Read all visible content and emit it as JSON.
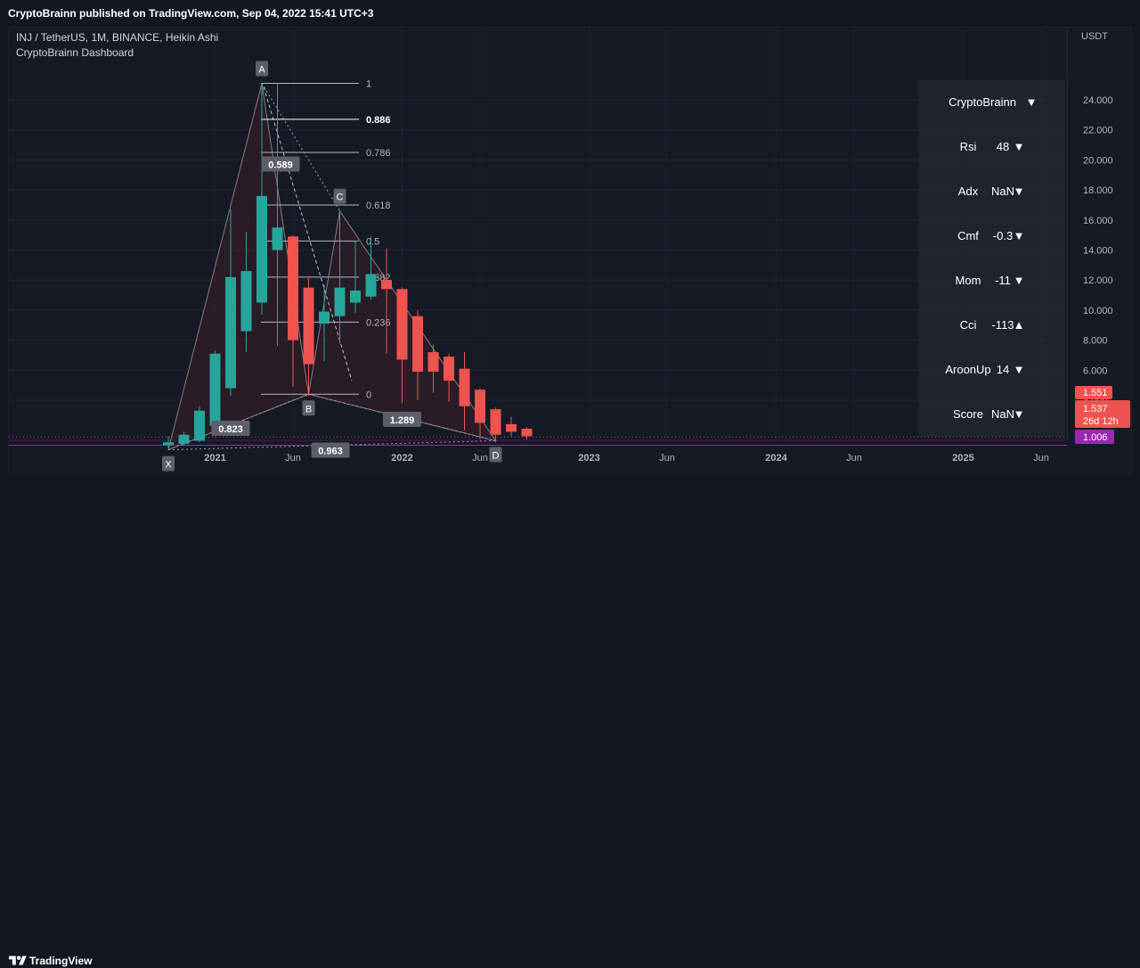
{
  "header": {
    "publisher": "CryptoBrainn published on TradingView.com, Sep 04, 2022 15:41 UTC+3"
  },
  "legend": {
    "symbol_line": "INJ / TetherUS, 1M, BINANCE, Heikin Ashi",
    "indicator_line": "CryptoBrainn Dashboard"
  },
  "currency": "USDT",
  "footer": {
    "brand": "TradingView"
  },
  "dashboard": {
    "title": "CryptoBrainn",
    "title_arrow": "▼",
    "rows": [
      {
        "label": "Rsi",
        "value": "48",
        "arrow": "▼"
      },
      {
        "label": "Adx",
        "value": "NaN",
        "arrow": "▼"
      },
      {
        "label": "Cmf",
        "value": "-0.3",
        "arrow": "▼"
      },
      {
        "label": "Mom",
        "value": "-11",
        "arrow": "▼"
      },
      {
        "label": "Cci",
        "value": "-113",
        "arrow": "▲"
      },
      {
        "label": "AroonUp",
        "value": "14",
        "arrow": "▼"
      },
      {
        "label": "Score",
        "value": "NaN",
        "arrow": "▼"
      }
    ]
  },
  "price_tags": {
    "p1": "1.551",
    "p2": "1.537",
    "countdown": "26d 12h",
    "p3": "1.006"
  },
  "colors": {
    "up": "#26a69a",
    "down": "#ef5350",
    "purple": "#9c27b0",
    "pattern_fill": "#3a1f2a"
  },
  "chart_data": {
    "type": "candlestick",
    "chart_style": "Heikin Ashi",
    "y_axis": {
      "ticks": [
        4,
        6,
        8,
        10,
        12,
        14,
        16,
        18,
        20,
        22,
        24
      ],
      "tick_labels": [
        "4.000",
        "6.000",
        "8.000",
        "10.000",
        "12.000",
        "14.000",
        "16.000",
        "18.000",
        "20.000",
        "22.000",
        "24.000"
      ],
      "bold_label": "1.006"
    },
    "x_axis": {
      "ticks": [
        {
          "label": "2021",
          "bold": true,
          "t": 3
        },
        {
          "label": "Jun",
          "bold": false,
          "t": 8
        },
        {
          "label": "2022",
          "bold": true,
          "t": 15
        },
        {
          "label": "Jun",
          "bold": false,
          "t": 20
        },
        {
          "label": "2023",
          "bold": true,
          "t": 27
        },
        {
          "label": "Jun",
          "bold": false,
          "t": 32
        },
        {
          "label": "2024",
          "bold": true,
          "t": 39
        },
        {
          "label": "Jun",
          "bold": false,
          "t": 44
        },
        {
          "label": "2025",
          "bold": true,
          "t": 51
        },
        {
          "label": "Jun",
          "bold": false,
          "t": 56
        }
      ]
    },
    "candles": [
      {
        "t": 0,
        "open": 1.0,
        "close": 1.2,
        "high": 1.6,
        "low": 0.8
      },
      {
        "t": 1,
        "open": 1.1,
        "close": 1.7,
        "high": 1.9,
        "low": 1.0
      },
      {
        "t": 2,
        "open": 1.3,
        "close": 3.3,
        "high": 3.6,
        "low": 1.2
      },
      {
        "t": 3,
        "open": 2.3,
        "close": 7.1,
        "high": 7.3,
        "low": 1.6
      },
      {
        "t": 4,
        "open": 4.8,
        "close": 12.2,
        "high": 16.7,
        "low": 4.3
      },
      {
        "t": 5,
        "open": 8.6,
        "close": 12.6,
        "high": 15.2,
        "low": 7.2
      },
      {
        "t": 6,
        "open": 10.5,
        "close": 17.6,
        "high": 25.1,
        "low": 9.7
      },
      {
        "t": 7,
        "open": 14.0,
        "close": 15.5,
        "high": 25.1,
        "low": 7.6
      },
      {
        "t": 8,
        "open": 14.9,
        "close": 8.0,
        "high": 15.0,
        "low": 4.9
      },
      {
        "t": 9,
        "open": 11.5,
        "close": 6.4,
        "high": 12.2,
        "low": 4.3
      },
      {
        "t": 10,
        "open": 9.1,
        "close": 9.9,
        "high": 11.7,
        "low": 6.6
      },
      {
        "t": 11,
        "open": 9.6,
        "close": 11.5,
        "high": 16.5,
        "low": 7.8
      },
      {
        "t": 12,
        "open": 10.5,
        "close": 11.3,
        "high": 14.6,
        "low": 9.8
      },
      {
        "t": 13,
        "open": 10.9,
        "close": 12.4,
        "high": 14.9,
        "low": 10.7
      },
      {
        "t": 14,
        "open": 12.0,
        "close": 11.4,
        "high": 14.1,
        "low": 7.1
      },
      {
        "t": 15,
        "open": 11.4,
        "close": 6.7,
        "high": 11.5,
        "low": 3.8
      },
      {
        "t": 16,
        "open": 9.6,
        "close": 5.9,
        "high": 10.0,
        "low": 4.0
      },
      {
        "t": 17,
        "open": 7.2,
        "close": 5.9,
        "high": 7.7,
        "low": 4.5
      },
      {
        "t": 18,
        "open": 6.9,
        "close": 5.3,
        "high": 7.1,
        "low": 3.9
      },
      {
        "t": 19,
        "open": 6.1,
        "close": 3.6,
        "high": 7.2,
        "low": 2.0
      },
      {
        "t": 20,
        "open": 4.7,
        "close": 2.5,
        "high": 4.8,
        "low": 1.4
      },
      {
        "t": 21,
        "open": 3.4,
        "close": 1.7,
        "high": 3.5,
        "low": 1.2
      },
      {
        "t": 22,
        "open": 2.4,
        "close": 1.9,
        "high": 2.9,
        "low": 1.6
      },
      {
        "t": 23,
        "open": 2.1,
        "close": 1.6,
        "high": 2.2,
        "low": 1.4
      }
    ],
    "points": [
      {
        "name": "X",
        "t": 0,
        "price": 0.7
      },
      {
        "name": "A",
        "t": 6,
        "price": 25.1
      },
      {
        "name": "B",
        "t": 9,
        "price": 4.4
      },
      {
        "name": "C",
        "t": 11,
        "price": 16.6
      },
      {
        "name": "D",
        "t": 21,
        "price": 1.3
      }
    ],
    "ratios": [
      {
        "label": "0.589",
        "t": 7.2,
        "price": 19.7
      },
      {
        "label": "0.823",
        "t": 4.0,
        "price": 2.1
      },
      {
        "label": "1.289",
        "t": 15.0,
        "price": 2.7
      },
      {
        "label": "0.963",
        "t": 10.4,
        "price": 0.65
      }
    ],
    "fib": {
      "t_start": 6.0,
      "t_end": 12.0,
      "levels": [
        {
          "label": "1",
          "price": 25.1,
          "bold": false
        },
        {
          "label": "0.886",
          "price": 22.7,
          "bold": true
        },
        {
          "label": "0.786",
          "price": 20.5,
          "bold": false
        },
        {
          "label": "0.618",
          "price": 17.0,
          "bold": false
        },
        {
          "label": "0.5",
          "price": 14.6,
          "bold": false
        },
        {
          "label": "0.382",
          "price": 12.2,
          "bold": false
        },
        {
          "label": "0.236",
          "price": 9.2,
          "bold": false
        },
        {
          "label": "0",
          "price": 4.4,
          "bold": false
        }
      ]
    },
    "hlines": [
      {
        "name": "last-price",
        "price": 1.55
      },
      {
        "name": "level-purple",
        "price": 1.006
      }
    ]
  }
}
